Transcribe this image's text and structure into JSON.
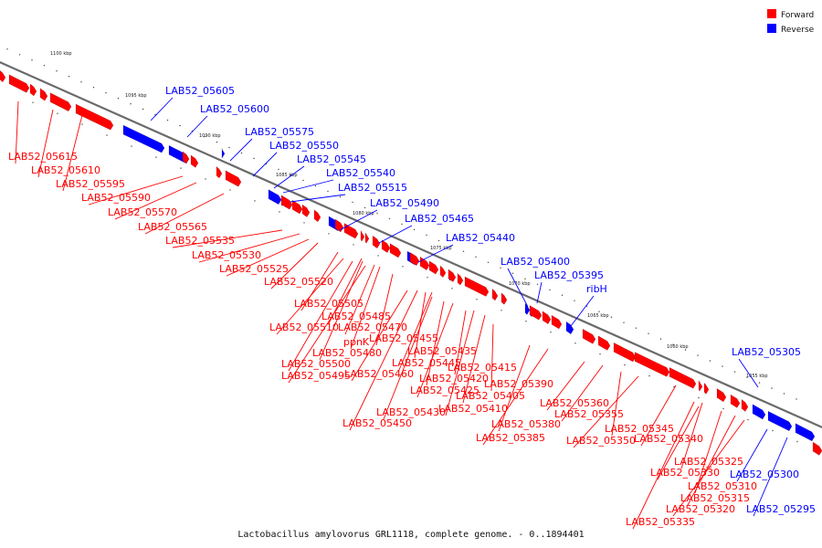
{
  "caption": "Lactobacillus amylovorus GRL1118, complete genome. - 0..1894401",
  "legend": [
    {
      "label": "Forward",
      "color": "#ff0000"
    },
    {
      "label": "Reverse",
      "color": "#0000ff"
    }
  ],
  "colors": {
    "forward": "#ff0000",
    "reverse": "#0000ff",
    "axis": "#808080"
  },
  "kbp_ticks": [
    "1100 kbp",
    "1095 kbp",
    "1090 kbp",
    "1085 kbp",
    "1080 kbp",
    "1075 kbp",
    "1070 kbp",
    "1065 kbp",
    "1060 kbp",
    "1055 kbp"
  ],
  "reverse_genes": [
    "LAB52_05605",
    "LAB52_05600",
    "LAB52_05575",
    "LAB52_05550",
    "LAB52_05545",
    "LAB52_05540",
    "LAB52_05515",
    "LAB52_05490",
    "LAB52_05465",
    "LAB52_05440",
    "LAB52_05400",
    "LAB52_05395",
    "ribH",
    "LAB52_05305",
    "LAB52_05300",
    "LAB52_05295"
  ],
  "forward_genes": [
    "LAB52_05615",
    "LAB52_05610",
    "LAB52_05595",
    "LAB52_05590",
    "LAB52_05570",
    "LAB52_05565",
    "LAB52_05535",
    "LAB52_05530",
    "LAB52_05525",
    "LAB52_05520",
    "LAB52_05505",
    "LAB52_05485",
    "LAB52_05510",
    "LAB52_05470",
    "ppnK",
    "LAB52_05455",
    "LAB52_05480",
    "LAB52_05500",
    "LAB52_05435",
    "LAB52_05445",
    "LAB52_05495",
    "LAB52_05460",
    "LAB52_05415",
    "LAB52_05420",
    "LAB52_05425",
    "LAB52_05405",
    "LAB52_05390",
    "LAB52_05410",
    "LAB52_05430",
    "LAB52_05450",
    "LAB52_05380",
    "LAB52_05385",
    "LAB52_05360",
    "LAB52_05355",
    "LAB52_05345",
    "LAB52_05350",
    "LAB52_05340",
    "LAB52_05325",
    "LAB52_05330",
    "LAB52_05310",
    "LAB52_05315",
    "LAB52_05320",
    "LAB52_05335"
  ]
}
